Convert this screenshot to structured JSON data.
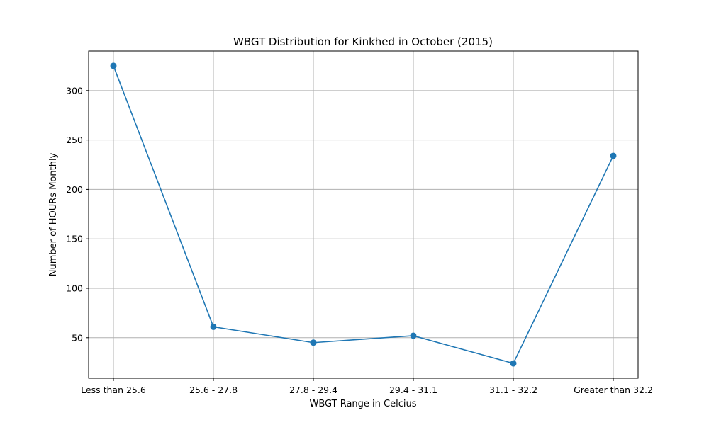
{
  "chart_data": {
    "type": "line",
    "title": "WBGT Distribution for Kinkhed in October (2015)",
    "xlabel": "WBGT Range in Celcius",
    "ylabel": "Number of HOURs Monthly",
    "categories": [
      "Less than 25.6",
      "25.6 - 27.8",
      "27.8 - 29.4",
      "29.4 - 31.1",
      "31.1 - 32.2",
      "Greater than 32.2"
    ],
    "series": [
      {
        "values": [
          325,
          61,
          45,
          52,
          24,
          234
        ]
      }
    ],
    "ylim": [
      9,
      340
    ],
    "yticks": [
      50,
      100,
      150,
      200,
      250,
      300
    ],
    "grid": true,
    "marker": "circle",
    "line_color": "#1f77b4"
  }
}
